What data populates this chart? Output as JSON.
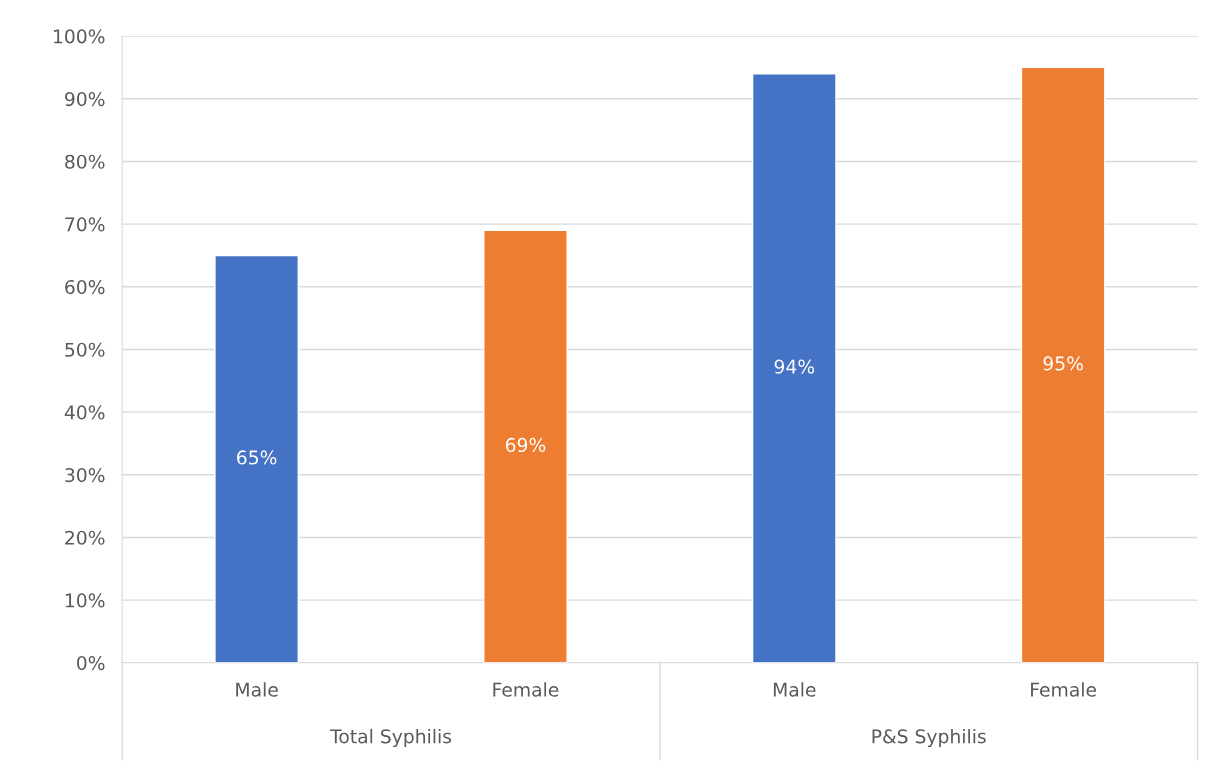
{
  "chart_data": {
    "type": "bar",
    "categories": [
      "Male",
      "Female",
      "Male",
      "Female"
    ],
    "values": [
      65,
      69,
      94,
      95
    ],
    "colors": [
      "#4472c4",
      "#ed7d31",
      "#4472c4",
      "#ed7d31"
    ],
    "value_labels": [
      "65%",
      "69%",
      "94%",
      "95%"
    ],
    "ylim": [
      0,
      100
    ],
    "yticks": [
      {
        "value": 0,
        "label": "0%"
      },
      {
        "value": 10,
        "label": "10%"
      },
      {
        "value": 20,
        "label": "20%"
      },
      {
        "value": 30,
        "label": "30%"
      },
      {
        "value": 40,
        "label": "40%"
      },
      {
        "value": 50,
        "label": "50%"
      },
      {
        "value": 60,
        "label": "60%"
      },
      {
        "value": 70,
        "label": "70%"
      },
      {
        "value": 80,
        "label": "80%"
      },
      {
        "value": 90,
        "label": "90%"
      },
      {
        "value": 100,
        "label": "100%"
      }
    ],
    "grid": "y",
    "annotations": [
      "Total Syphilis",
      "P&S Syphilis"
    ]
  }
}
